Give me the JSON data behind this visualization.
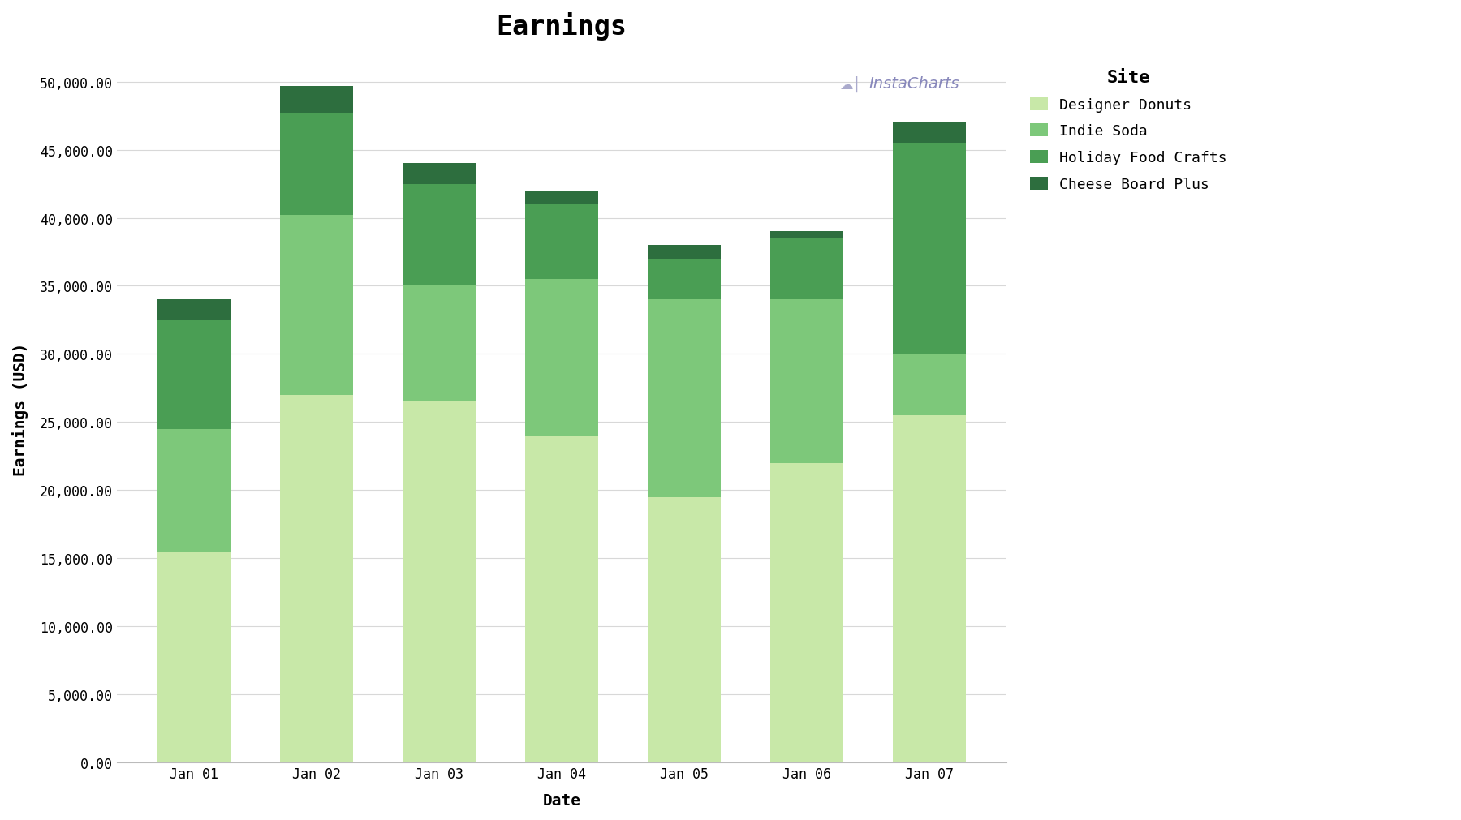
{
  "title": "Earnings",
  "xlabel": "Date",
  "ylabel": "Earnings (USD)",
  "categories": [
    "Jan 01",
    "Jan 02",
    "Jan 03",
    "Jan 04",
    "Jan 05",
    "Jan 06",
    "Jan 07"
  ],
  "series": [
    {
      "name": "Designer Donuts",
      "color": "#c8e8a8",
      "values": [
        15500,
        27000,
        26500,
        24000,
        19500,
        22000,
        25500
      ]
    },
    {
      "name": "Indie Soda",
      "color": "#7dc87a",
      "values": [
        9000,
        13200,
        8500,
        11500,
        14500,
        12000,
        4500
      ]
    },
    {
      "name": "Holiday Food Crafts",
      "color": "#4a9e54",
      "values": [
        8000,
        7500,
        7500,
        5500,
        3000,
        4500,
        15500
      ]
    },
    {
      "name": "Cheese Board Plus",
      "color": "#2d6e3e",
      "values": [
        1500,
        2000,
        1500,
        1000,
        1000,
        500,
        1500
      ]
    }
  ],
  "ylim": [
    0,
    52000
  ],
  "yticks": [
    0,
    5000,
    10000,
    15000,
    20000,
    25000,
    30000,
    35000,
    40000,
    45000,
    50000
  ],
  "background_color": "#ffffff",
  "plot_bg_color": "#ffffff",
  "grid_color": "#d8d8d8",
  "title_fontsize": 24,
  "axis_label_fontsize": 14,
  "tick_fontsize": 12,
  "legend_fontsize": 13,
  "legend_title_fontsize": 16,
  "bar_width": 0.6,
  "watermark_text": "InstaCharts"
}
